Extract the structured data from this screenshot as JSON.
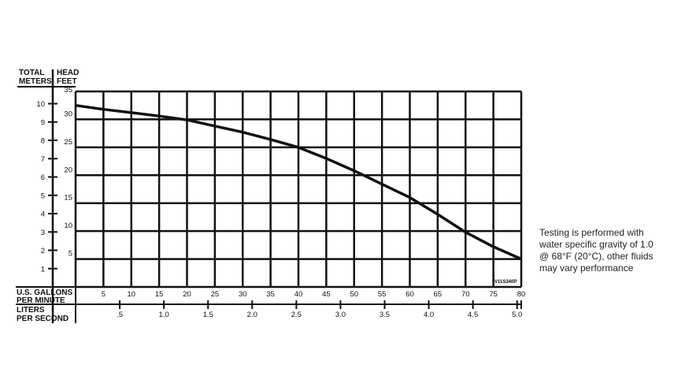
{
  "chart_data": {
    "type": "line",
    "y_header_left": "TOTAL",
    "y_header_right": "HEAD",
    "ylabel_meters": "METERS",
    "ylabel_feet": "FEET",
    "xlabel_gpm": [
      "U.S. GALLONS",
      "PER MINUTE"
    ],
    "xlabel_lps": [
      "LITERS",
      "PER SECOND"
    ],
    "xlim_gpm": [
      0,
      80
    ],
    "ylim_feet": [
      0,
      35
    ],
    "grid": true,
    "gpm_ticks": [
      "5",
      "10",
      "15",
      "20",
      "25",
      "30",
      "35",
      "40",
      "45",
      "50",
      "55",
      "60",
      "65",
      "70",
      "75",
      "80"
    ],
    "feet_ticks": [
      "5",
      "10",
      "15",
      "20",
      "25",
      "30",
      "35"
    ],
    "meter_ticks": [
      "1",
      "2",
      "3",
      "4",
      "5",
      "6",
      "7",
      "8",
      "9",
      "10"
    ],
    "lps_ticks": [
      ".5",
      "1.0",
      "1.5",
      "2.0",
      "2.5",
      "3.0",
      "3.5",
      "4.0",
      "4.5",
      "5.0"
    ],
    "drawing_code": "V11S340P",
    "series": [
      {
        "x": [
          0,
          5,
          10,
          15,
          20,
          25,
          30,
          35,
          40,
          45,
          50,
          55,
          60,
          65,
          70,
          75,
          80
        ],
        "y": [
          32.5,
          31.8,
          31.2,
          30.6,
          29.9,
          28.8,
          27.7,
          26.4,
          25.0,
          23.0,
          20.8,
          18.4,
          16.0,
          13.0,
          9.8,
          7.2,
          5.0
        ]
      }
    ]
  },
  "note": "Testing is performed with water specific gravity of 1.0 @ 68°F (20°C), other fluids may vary performance"
}
